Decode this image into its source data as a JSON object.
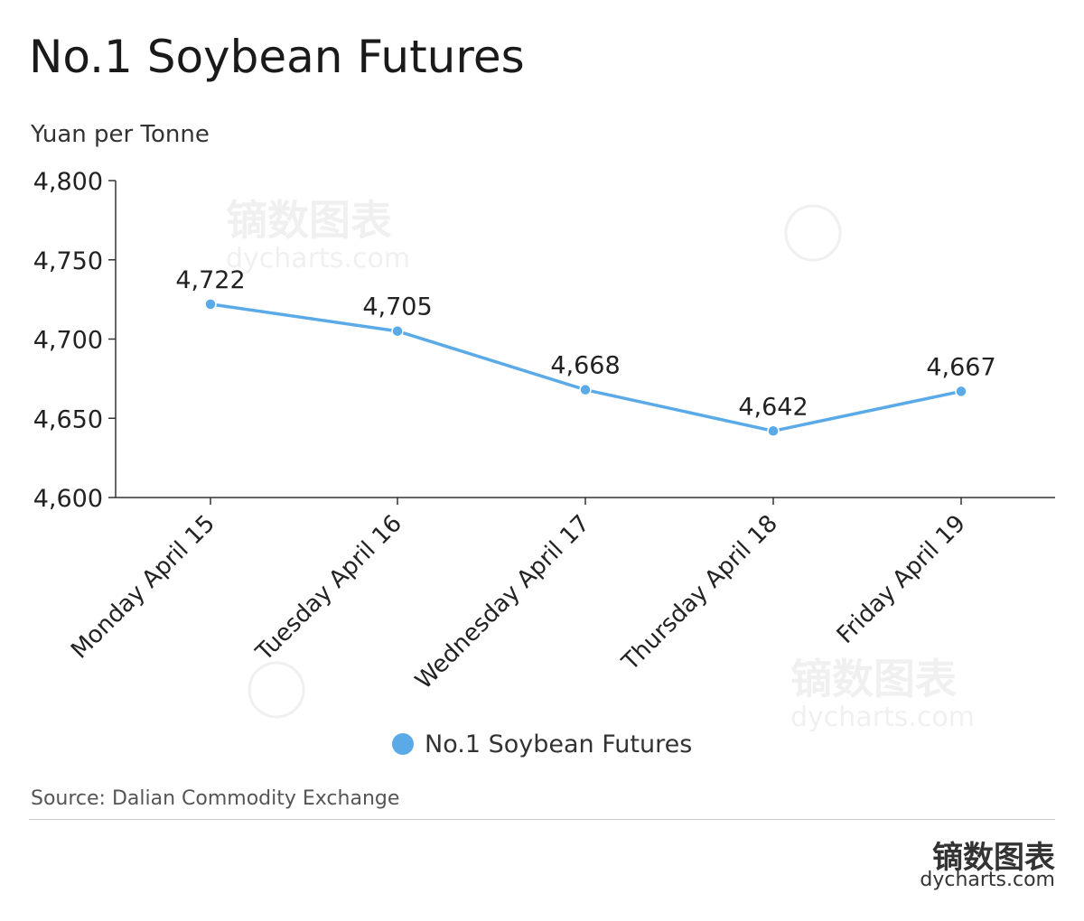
{
  "header": {
    "title": "No.1 Soybean Futures",
    "unit_label": "Yuan per Tonne"
  },
  "footer": {
    "source": "Source: Dalian Commodity Exchange",
    "brand_cn": "镝数图表",
    "brand_en": "dycharts.com"
  },
  "watermark": {
    "cn": "镝数图表",
    "en": "dycharts.com"
  },
  "colors": {
    "series": "#5aaae8",
    "axis": "#333333",
    "text": "#222222"
  },
  "chart_data": {
    "type": "line",
    "title": "No.1 Soybean Futures",
    "ylabel": "Yuan per Tonne",
    "xlabel": "",
    "categories": [
      "Monday April 15",
      "Tuesday April 16",
      "Wednesday April 17",
      "Thursday April 18",
      "Friday April 19"
    ],
    "series": [
      {
        "name": "No.1 Soybean Futures",
        "values": [
          4722,
          4705,
          4668,
          4642,
          4667
        ]
      }
    ],
    "data_labels": [
      "4,722",
      "4,705",
      "4,668",
      "4,642",
      "4,667"
    ],
    "yticks": [
      "4,600",
      "4,650",
      "4,700",
      "4,750",
      "4,800"
    ],
    "ytick_values": [
      4600,
      4650,
      4700,
      4750,
      4800
    ],
    "ylim": [
      4600,
      4800
    ],
    "grid": false,
    "legend": "bottom-center"
  }
}
